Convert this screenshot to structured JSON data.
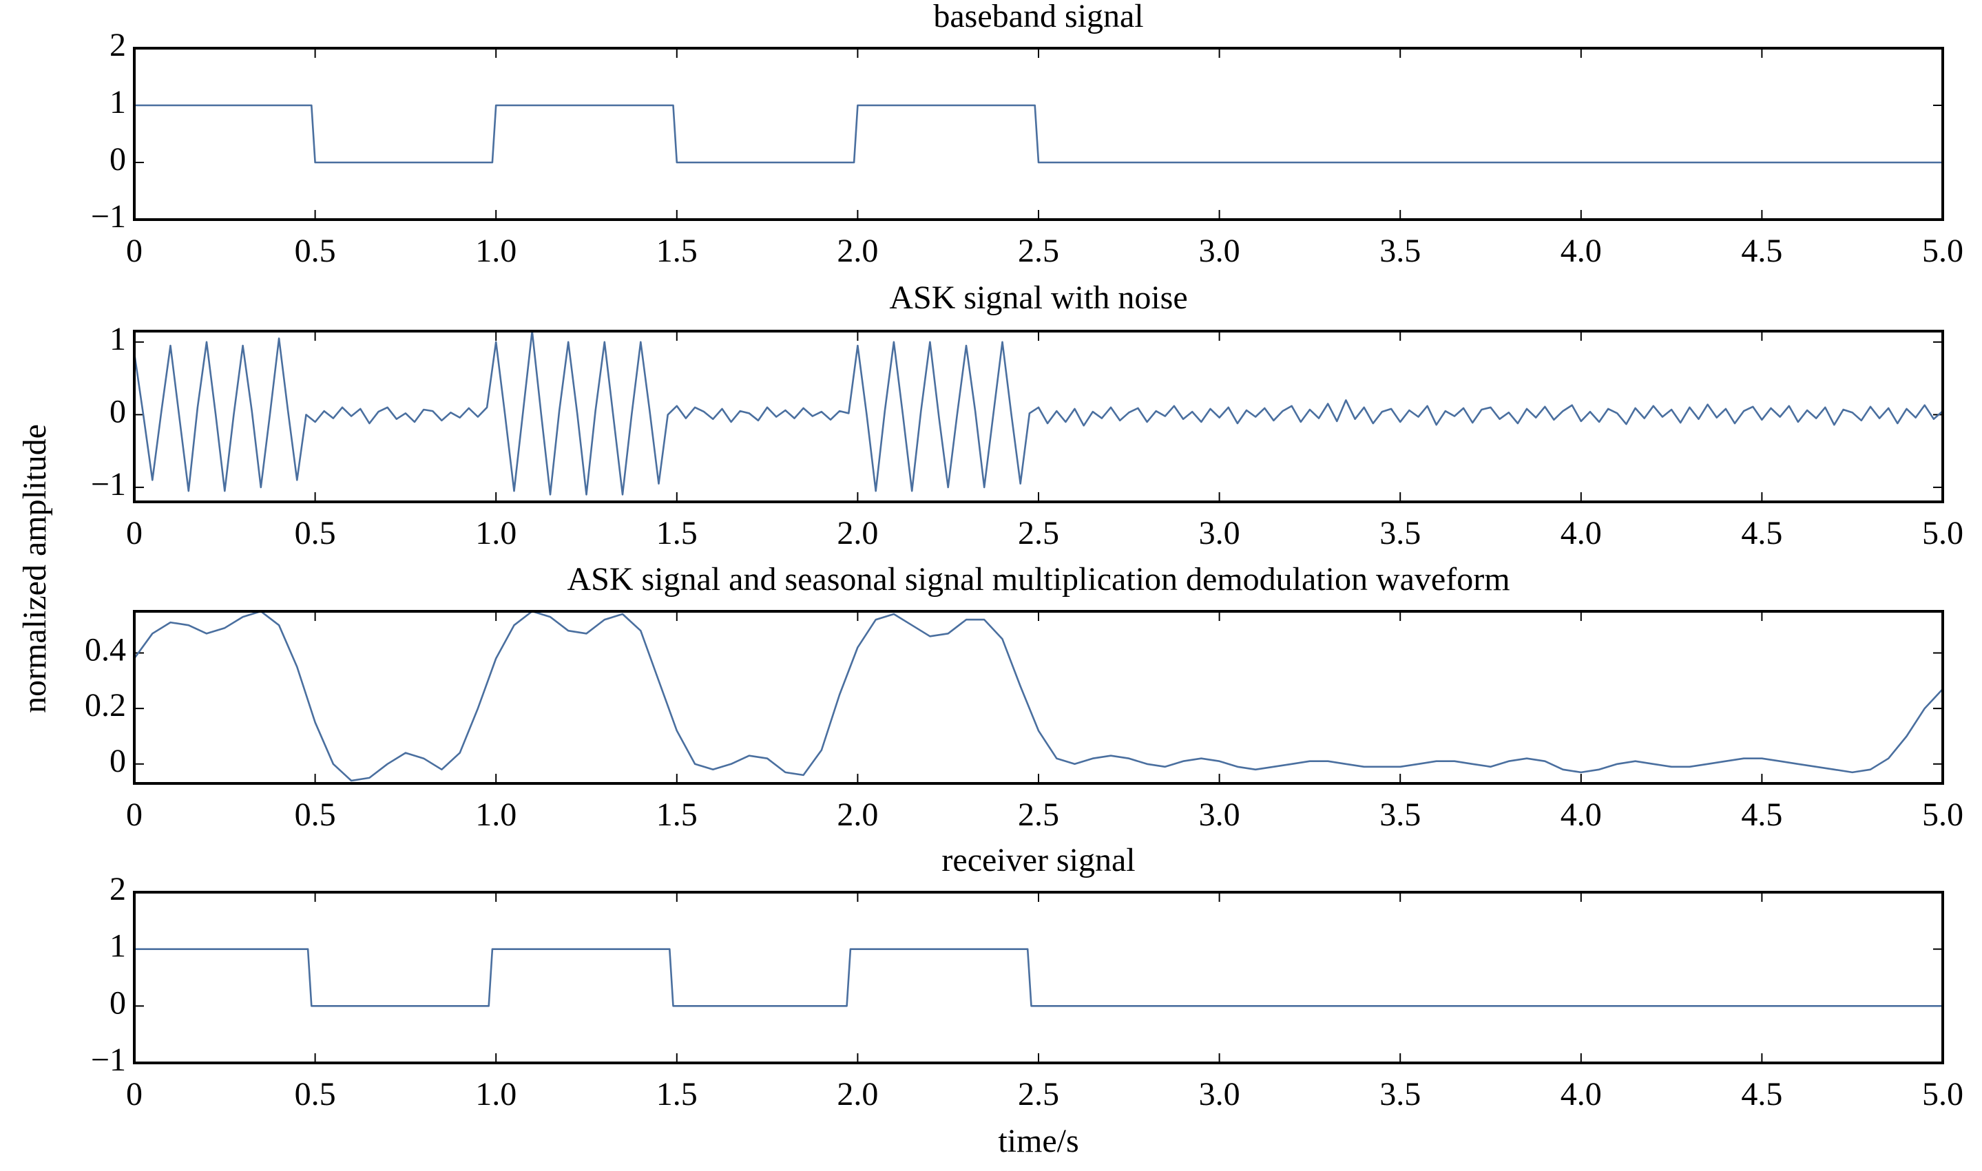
{
  "ylabel": "normalized amplitude",
  "chart_data": [
    {
      "type": "line",
      "title": "baseband signal",
      "color": "#4a6f9f",
      "x": [
        0,
        0.49,
        0.5,
        0.99,
        1,
        1.49,
        1.5,
        1.99,
        2,
        2.49,
        2.5,
        5
      ],
      "values": [
        1,
        1,
        0,
        0,
        1,
        1,
        0,
        0,
        1,
        1,
        0,
        0
      ],
      "ylim": [
        -1,
        2
      ],
      "yticks": [
        {
          "value": -1,
          "label": "−1"
        },
        0,
        1,
        2
      ],
      "xlim": [
        0,
        5
      ],
      "xticks": [
        0,
        0.5,
        {
          "value": 1,
          "label": "1.0"
        },
        1.5,
        {
          "value": 2,
          "label": "2.0"
        },
        2.5,
        {
          "value": 3,
          "label": "3.0"
        },
        3.5,
        {
          "value": 4,
          "label": "4.0"
        },
        4.5,
        {
          "value": 5,
          "label": "5.0"
        }
      ]
    },
    {
      "type": "line",
      "title": "ASK signal with noise",
      "color": "#4a6f9f",
      "x": [
        0,
        0.025,
        0.05,
        0.075,
        0.1,
        0.125,
        0.15,
        0.175,
        0.2,
        0.225,
        0.25,
        0.275,
        0.3,
        0.325,
        0.35,
        0.375,
        0.4,
        0.425,
        0.45,
        0.475,
        0.5,
        0.525,
        0.55,
        0.575,
        0.6,
        0.625,
        0.65,
        0.675,
        0.7,
        0.725,
        0.75,
        0.775,
        0.8,
        0.825,
        0.85,
        0.875,
        0.9,
        0.925,
        0.95,
        0.975,
        1,
        1.025,
        1.05,
        1.075,
        1.1,
        1.125,
        1.15,
        1.175,
        1.2,
        1.225,
        1.25,
        1.275,
        1.3,
        1.325,
        1.35,
        1.375,
        1.4,
        1.425,
        1.45,
        1.475,
        1.5,
        1.525,
        1.55,
        1.575,
        1.6,
        1.625,
        1.65,
        1.675,
        1.7,
        1.725,
        1.75,
        1.775,
        1.8,
        1.825,
        1.85,
        1.875,
        1.9,
        1.925,
        1.95,
        1.975,
        2,
        2.025,
        2.05,
        2.075,
        2.1,
        2.125,
        2.15,
        2.175,
        2.2,
        2.225,
        2.25,
        2.275,
        2.3,
        2.325,
        2.35,
        2.375,
        2.4,
        2.425,
        2.45,
        2.475,
        2.5,
        2.525,
        2.55,
        2.575,
        2.6,
        2.625,
        2.65,
        2.675,
        2.7,
        2.725,
        2.75,
        2.775,
        2.8,
        2.825,
        2.85,
        2.875,
        2.9,
        2.925,
        2.95,
        2.975,
        3,
        3.025,
        3.05,
        3.075,
        3.1,
        3.125,
        3.15,
        3.175,
        3.2,
        3.225,
        3.25,
        3.275,
        3.3,
        3.325,
        3.35,
        3.375,
        3.4,
        3.425,
        3.45,
        3.475,
        3.5,
        3.525,
        3.55,
        3.575,
        3.6,
        3.625,
        3.65,
        3.675,
        3.7,
        3.725,
        3.75,
        3.775,
        3.8,
        3.825,
        3.85,
        3.875,
        3.9,
        3.925,
        3.95,
        3.975,
        4,
        4.025,
        4.05,
        4.075,
        4.1,
        4.125,
        4.15,
        4.175,
        4.2,
        4.225,
        4.25,
        4.275,
        4.3,
        4.325,
        4.35,
        4.375,
        4.4,
        4.425,
        4.45,
        4.475,
        4.5,
        4.525,
        4.55,
        4.575,
        4.6,
        4.625,
        4.65,
        4.675,
        4.7,
        4.725,
        4.75,
        4.775,
        4.8,
        4.825,
        4.85,
        4.875,
        4.9,
        4.925,
        4.95,
        4.975,
        5
      ],
      "values": [
        0.85,
        0,
        -0.9,
        0.05,
        0.95,
        -0.05,
        -1.05,
        0.1,
        1.0,
        0,
        -1.05,
        0,
        0.95,
        0.05,
        -1.0,
        0,
        1.05,
        0.05,
        -0.9,
        0,
        -0.1,
        0.05,
        -0.05,
        0.1,
        -0.02,
        0.08,
        -0.12,
        0.04,
        0.1,
        -0.06,
        0.02,
        -0.1,
        0.07,
        0.05,
        -0.08,
        0.03,
        -0.04,
        0.09,
        -0.03,
        0.1,
        1.0,
        0,
        -1.05,
        0.05,
        1.15,
        0,
        -1.1,
        0.05,
        1.0,
        0,
        -1.1,
        0.05,
        1.0,
        -0.05,
        -1.1,
        0,
        1.0,
        0.05,
        -0.95,
        0,
        0.12,
        -0.05,
        0.1,
        0.04,
        -0.06,
        0.08,
        -0.1,
        0.05,
        0.02,
        -0.08,
        0.1,
        -0.03,
        0.06,
        -0.05,
        0.09,
        -0.02,
        0.04,
        -0.07,
        0.05,
        0.02,
        0.95,
        0,
        -1.05,
        0.05,
        1.0,
        0,
        -1.05,
        0.05,
        1.0,
        -0.05,
        -1.0,
        0,
        0.95,
        0.05,
        -1.0,
        0,
        1.0,
        0,
        -0.95,
        0.02,
        0.1,
        -0.12,
        0.05,
        -0.1,
        0.08,
        -0.15,
        0.04,
        -0.05,
        0.1,
        -0.08,
        0.03,
        0.09,
        -0.1,
        0.05,
        -0.02,
        0.12,
        -0.06,
        0.04,
        -0.1,
        0.08,
        -0.04,
        0.1,
        -0.12,
        0.06,
        -0.03,
        0.09,
        -0.08,
        0.05,
        0.12,
        -0.1,
        0.07,
        -0.05,
        0.15,
        -0.09,
        0.2,
        -0.06,
        0.1,
        -0.12,
        0.04,
        0.08,
        -0.1,
        0.06,
        -0.03,
        0.12,
        -0.14,
        0.05,
        -0.02,
        0.09,
        -0.11,
        0.07,
        0.1,
        -0.06,
        0.03,
        -0.12,
        0.08,
        -0.04,
        0.11,
        -0.07,
        0.05,
        0.13,
        -0.09,
        0.04,
        -0.1,
        0.08,
        0.02,
        -0.13,
        0.09,
        -0.05,
        0.12,
        -0.03,
        0.07,
        -0.11,
        0.1,
        -0.06,
        0.14,
        -0.04,
        0.08,
        -0.12,
        0.05,
        0.11,
        -0.07,
        0.09,
        -0.03,
        0.12,
        -0.1,
        0.06,
        -0.05,
        0.1,
        -0.14,
        0.07,
        0.03,
        -0.08,
        0.11,
        -0.05,
        0.09,
        -0.12,
        0.08,
        -0.04,
        0.13,
        -0.06,
        0.05
      ],
      "ylim": [
        -1.2,
        1.15
      ],
      "yticks": [
        {
          "value": -1,
          "label": "−1"
        },
        0,
        1
      ],
      "xlim": [
        0,
        5
      ],
      "xticks": [
        0,
        0.5,
        {
          "value": 1,
          "label": "1.0"
        },
        1.5,
        {
          "value": 2,
          "label": "2.0"
        },
        2.5,
        {
          "value": 3,
          "label": "3.0"
        },
        3.5,
        {
          "value": 4,
          "label": "4.0"
        },
        4.5,
        {
          "value": 5,
          "label": "5.0"
        }
      ]
    },
    {
      "type": "line",
      "title": "ASK signal and seasonal signal multiplication demodulation waveform",
      "color": "#4a6f9f",
      "x": [
        0,
        0.05,
        0.1,
        0.15,
        0.2,
        0.25,
        0.3,
        0.35,
        0.4,
        0.45,
        0.5,
        0.55,
        0.6,
        0.65,
        0.7,
        0.75,
        0.8,
        0.85,
        0.9,
        0.95,
        1,
        1.05,
        1.1,
        1.15,
        1.2,
        1.25,
        1.3,
        1.35,
        1.4,
        1.45,
        1.5,
        1.55,
        1.6,
        1.65,
        1.7,
        1.75,
        1.8,
        1.85,
        1.9,
        1.95,
        2,
        2.05,
        2.1,
        2.15,
        2.2,
        2.25,
        2.3,
        2.35,
        2.4,
        2.45,
        2.5,
        2.55,
        2.6,
        2.65,
        2.7,
        2.75,
        2.8,
        2.85,
        2.9,
        2.95,
        3,
        3.05,
        3.1,
        3.15,
        3.2,
        3.25,
        3.3,
        3.35,
        3.4,
        3.45,
        3.5,
        3.55,
        3.6,
        3.65,
        3.7,
        3.75,
        3.8,
        3.85,
        3.9,
        3.95,
        4,
        4.05,
        4.1,
        4.15,
        4.2,
        4.25,
        4.3,
        4.35,
        4.4,
        4.45,
        4.5,
        4.55,
        4.6,
        4.65,
        4.7,
        4.75,
        4.8,
        4.85,
        4.9,
        4.95,
        5
      ],
      "values": [
        0.38,
        0.47,
        0.51,
        0.5,
        0.47,
        0.49,
        0.53,
        0.55,
        0.5,
        0.35,
        0.15,
        0.0,
        -0.06,
        -0.05,
        0.0,
        0.04,
        0.02,
        -0.02,
        0.04,
        0.2,
        0.38,
        0.5,
        0.55,
        0.53,
        0.48,
        0.47,
        0.52,
        0.54,
        0.48,
        0.3,
        0.12,
        0.0,
        -0.02,
        0.0,
        0.03,
        0.02,
        -0.03,
        -0.04,
        0.05,
        0.25,
        0.42,
        0.52,
        0.54,
        0.5,
        0.46,
        0.47,
        0.52,
        0.52,
        0.45,
        0.28,
        0.12,
        0.02,
        0.0,
        0.02,
        0.03,
        0.02,
        0.0,
        -0.01,
        0.01,
        0.02,
        0.01,
        -0.01,
        -0.02,
        -0.01,
        0.0,
        0.01,
        0.01,
        0.0,
        -0.01,
        -0.01,
        -0.01,
        0.0,
        0.01,
        0.01,
        0.0,
        -0.01,
        0.01,
        0.02,
        0.01,
        -0.02,
        -0.03,
        -0.02,
        0.0,
        0.01,
        0.0,
        -0.01,
        -0.01,
        0.0,
        0.01,
        0.02,
        0.02,
        0.01,
        0.0,
        -0.01,
        -0.02,
        -0.03,
        -0.02,
        0.02,
        0.1,
        0.2,
        0.27
      ],
      "ylim": [
        -0.07,
        0.55
      ],
      "yticks": [
        0,
        0.2,
        0.4
      ],
      "xlim": [
        0,
        5
      ],
      "xticks": [
        0,
        0.5,
        {
          "value": 1,
          "label": "1.0"
        },
        1.5,
        {
          "value": 2,
          "label": "2.0"
        },
        2.5,
        {
          "value": 3,
          "label": "3.0"
        },
        3.5,
        {
          "value": 4,
          "label": "4.0"
        },
        4.5,
        {
          "value": 5,
          "label": "5.0"
        }
      ]
    },
    {
      "type": "line",
      "title": "receiver signal",
      "color": "#4a6f9f",
      "xlabel": "time/s",
      "x": [
        0,
        0.48,
        0.49,
        0.98,
        0.99,
        1.48,
        1.49,
        1.97,
        1.98,
        2.47,
        2.48,
        5
      ],
      "values": [
        1,
        1,
        0,
        0,
        1,
        1,
        0,
        0,
        1,
        1,
        0,
        0
      ],
      "ylim": [
        -1,
        2
      ],
      "yticks": [
        {
          "value": -1,
          "label": "−1"
        },
        0,
        1,
        2
      ],
      "xlim": [
        0,
        5
      ],
      "xticks": [
        0,
        0.5,
        {
          "value": 1,
          "label": "1.0"
        },
        1.5,
        {
          "value": 2,
          "label": "2.0"
        },
        2.5,
        {
          "value": 3,
          "label": "3.0"
        },
        3.5,
        {
          "value": 4,
          "label": "4.0"
        },
        4.5,
        {
          "value": 5,
          "label": "5.0"
        }
      ]
    }
  ]
}
